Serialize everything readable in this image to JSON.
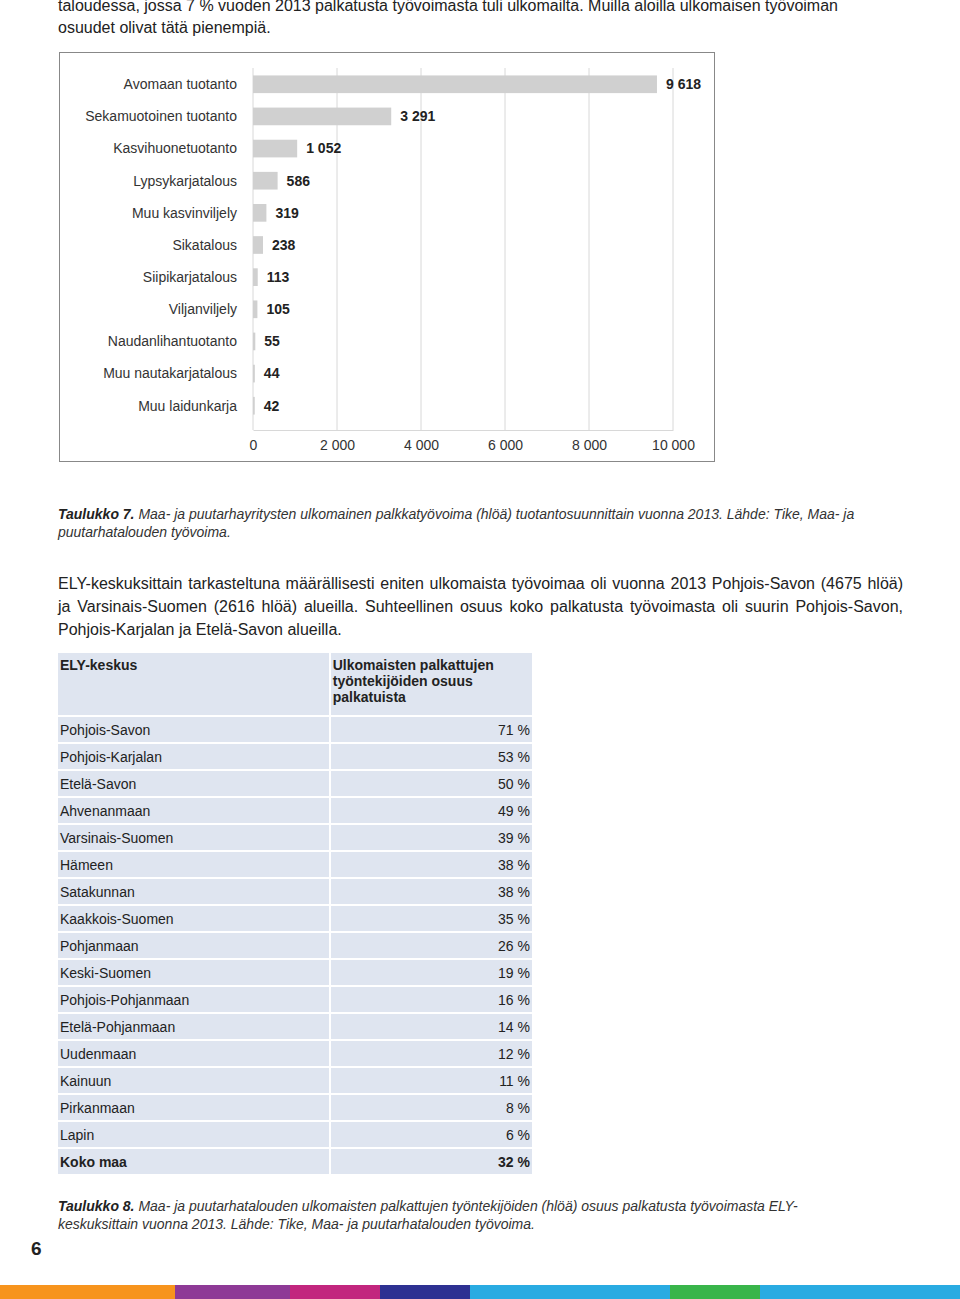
{
  "intro": [
    "taloudessa, jossa 7 % vuoden 2013 palkatusta työvoimasta tuli ulkomailta. Muilla aloilla ulkomaisen työvoiman",
    "osuudet olivat tätä pienempiä."
  ],
  "chart_data": {
    "type": "bar",
    "orientation": "horizontal",
    "categories": [
      "Avomaan tuotanto",
      "Sekamuotoinen tuotanto",
      "Kasvihuonetuotanto",
      "Lypsykarjatalous",
      "Muu kasvinviljely",
      "Sikatalous",
      "Siipikarjatalous",
      "Viljanviljely",
      "Naudanlihantuotanto",
      "Muu nautakarjatalous",
      "Muu laidunkarja"
    ],
    "values": [
      9618,
      3291,
      1052,
      586,
      319,
      238,
      113,
      105,
      55,
      44,
      42
    ],
    "value_labels": [
      "9 618",
      "3 291",
      "1 052",
      "586",
      "319",
      "238",
      "113",
      "105",
      "55",
      "44",
      "42"
    ],
    "color": "#d0d0d0",
    "data_labels": true,
    "grid": true,
    "xlim": [
      0,
      10000
    ],
    "xticks": [
      0,
      {
        "value": 2000,
        "label": "2 000"
      },
      {
        "value": 4000,
        "label": "4 000"
      },
      {
        "value": 6000,
        "label": "6 000"
      },
      {
        "value": 8000,
        "label": "8 000"
      },
      {
        "value": 10000,
        "label": "10 000"
      }
    ]
  },
  "caption1": {
    "label": "Taulukko 7.",
    "text": "Maa- ja puutarhayritysten ulkomainen palkkatyövoima (hlöä) tuotantosuunnittain vuonna 2013. Lähde: Tike, Maa- ja puutarhatalouden työvoima."
  },
  "paragraph": "ELY-keskuksittain tarkasteltuna määrällisesti eniten ulkomaista työvoimaa oli vuonna 2013 Pohjois-Savon (4675 hlöä) ja Varsinais-Suomen (2616 hlöä) alueilla. Suhteellinen osuus koko palkatusta työvoimasta oli suurin Pohjois-Savon, Pohjois-Karjalan ja Etelä-Savon alueilla.",
  "table": {
    "header": [
      "ELY-keskus",
      "Ulkomaisten palkattujen työntekijöiden osuus palkatuista"
    ],
    "rows": [
      [
        "Pohjois-Savon",
        "71 %"
      ],
      [
        "Pohjois-Karjalan",
        "53 %"
      ],
      [
        "Etelä-Savon",
        "50 %"
      ],
      [
        "Ahvenanmaan",
        "49 %"
      ],
      [
        "Varsinais-Suomen",
        "39 %"
      ],
      [
        "Hämeen",
        "38 %"
      ],
      [
        "Satakunnan",
        "38 %"
      ],
      [
        "Kaakkois-Suomen",
        "35 %"
      ],
      [
        "Pohjanmaan",
        "26 %"
      ],
      [
        "Keski-Suomen",
        "19 %"
      ],
      [
        "Pohjois-Pohjanmaan",
        "16 %"
      ],
      [
        "Etelä-Pohjanmaan",
        "14 %"
      ],
      [
        "Uudenmaan",
        "12 %"
      ],
      [
        "Kainuun",
        "11 %"
      ],
      [
        "Pirkanmaan",
        "8 %"
      ],
      [
        "Lapin",
        "6 %"
      ]
    ],
    "total": [
      "Koko maa",
      "32 %"
    ]
  },
  "caption2": {
    "label": "Taulukko 8.",
    "text": "Maa- ja puutarhatalouden ulkomaisten palkattujen työntekijöiden (hlöä) osuus palkatusta työvoimasta ELY-keskuksittain vuonna 2013. Lähde: Tike, Maa- ja puutarhatalouden työvoima."
  },
  "page_number": "6"
}
